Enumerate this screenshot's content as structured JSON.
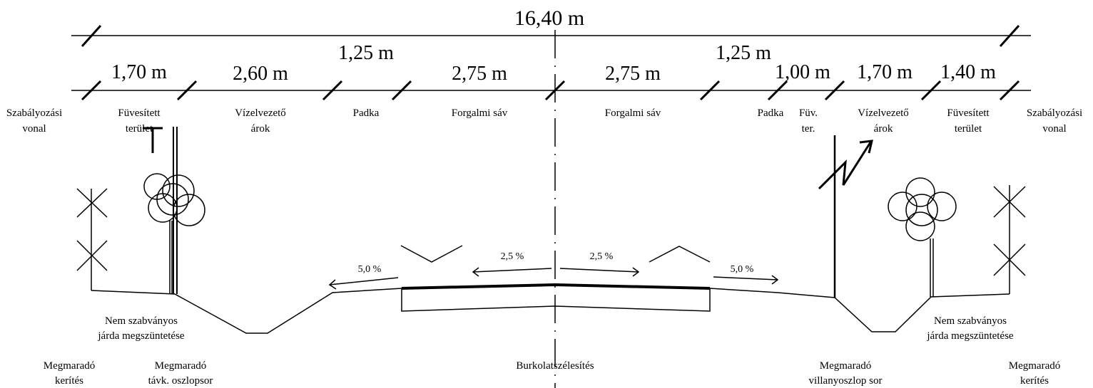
{
  "overall_width": "16,40 m",
  "dimensions": [
    "1,70 m",
    "2,60 m",
    "1,25 m",
    "2,75 m",
    "2,75 m",
    "1,25 m",
    "1,00 m",
    "1,70 m",
    "1,40 m"
  ],
  "zones": [
    [
      "Szabályozási",
      "vonal"
    ],
    [
      "Füvesített",
      "terület"
    ],
    [
      "Vízelvezető",
      "árok"
    ],
    [
      "Padka"
    ],
    [
      "Forgalmi sáv"
    ],
    [
      "Forgalmi sáv"
    ],
    [
      "Padka"
    ],
    [
      "Füv.",
      "ter."
    ],
    [
      "Vízelvezető",
      "árok"
    ],
    [
      "Füvesített",
      "terület"
    ],
    [
      "Szabályozási",
      "vonal"
    ]
  ],
  "slopes": [
    "5,0 %",
    "2,5 %",
    "2,5 %",
    "5,0 %"
  ],
  "notes": [
    [
      "Nem szabványos",
      "járda megszüntetése"
    ],
    [
      "Nem szabványos",
      "járda megszüntetése"
    ],
    [
      "Megmaradó",
      "kerítés"
    ],
    [
      "Megmaradó",
      "távk. oszlopsor"
    ],
    [
      "Burkolatszélesítés"
    ],
    [
      "Megmaradó",
      "villanyoszlop sor"
    ],
    [
      "Megmaradó",
      "kerítés"
    ]
  ]
}
